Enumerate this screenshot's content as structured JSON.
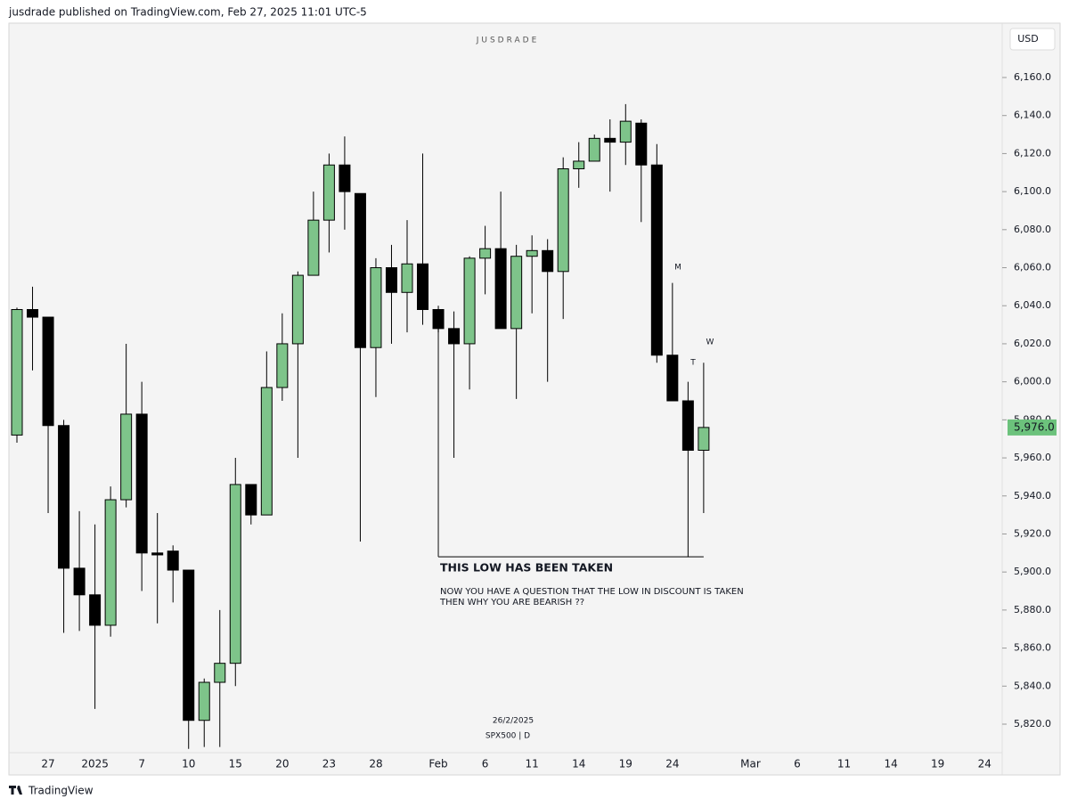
{
  "header": "jusdrade published on TradingView.com, Feb 27, 2025 11:01 UTC-5",
  "footer": "TradingView",
  "chart_data": {
    "type": "candlestick",
    "watermark": "JUSDRADE",
    "currency": "USD",
    "symbol": "SPX500 | D",
    "date": "26/2/2025",
    "up_color": "#7ec48a",
    "down_color": "#000000",
    "categories": [
      null,
      null,
      "27",
      null,
      null,
      "2025",
      null,
      null,
      "7",
      null,
      null,
      "10",
      null,
      null,
      "15",
      null,
      null,
      "20",
      null,
      null,
      "23",
      null,
      null,
      "28",
      null,
      null,
      null,
      "Feb",
      null,
      null,
      "6",
      null,
      null,
      "11",
      null,
      null,
      "14",
      null,
      null,
      "19",
      null,
      null,
      "24",
      null,
      null,
      null,
      null,
      "Mar",
      null,
      null,
      "6",
      null,
      null,
      "11",
      null,
      null,
      "14",
      null,
      null,
      "19",
      null,
      null,
      "24"
    ],
    "open": [
      5972,
      6038,
      6034,
      5977,
      5902,
      5888,
      5872,
      5938,
      5983,
      5910,
      5911,
      5901,
      5822,
      5842,
      5852,
      5946,
      5930,
      5997,
      6020,
      6056,
      6085,
      6114,
      6099,
      6018,
      6060,
      6047,
      6062,
      6038,
      6028,
      6020,
      6065,
      6070,
      6028,
      6066,
      6069,
      6058,
      6112,
      6116,
      6128,
      6126,
      6136,
      6114,
      6014,
      5990,
      5964,
      null,
      null,
      null,
      null,
      null,
      null,
      null,
      null,
      null,
      null,
      null,
      null,
      null,
      null,
      null,
      null,
      null,
      null
    ],
    "high": [
      6039,
      6050,
      6034,
      5980,
      5932,
      5925,
      5945,
      6020,
      6000,
      5931,
      5914,
      5901,
      5844,
      5880,
      5960,
      5946,
      6016,
      6036,
      6058,
      6100,
      6120,
      6129,
      6099,
      6065,
      6072,
      6085,
      6120,
      6040,
      6037,
      6066,
      6082,
      6100,
      6072,
      6077,
      6075,
      6118,
      6126,
      6130,
      6138,
      6146,
      6138,
      6125,
      6052,
      6000,
      6010,
      null,
      null,
      null,
      null,
      null,
      null,
      null,
      null,
      null,
      null,
      null,
      null,
      null,
      null,
      null,
      null,
      null,
      null
    ],
    "low": [
      5968,
      6006,
      5931,
      5868,
      5869,
      5828,
      5866,
      5934,
      5890,
      5873,
      5884,
      5807,
      5808,
      5808,
      5840,
      5925,
      5930,
      5990,
      5960,
      6056,
      6068,
      6080,
      5916,
      5992,
      6020,
      6026,
      6030,
      6026,
      5960,
      5996,
      6046,
      6028,
      5991,
      6036,
      6000,
      6033,
      6102,
      6116,
      6100,
      6114,
      6084,
      6010,
      5990,
      5908,
      5931,
      null,
      null,
      null,
      null,
      null,
      null,
      null,
      null,
      null,
      null,
      null,
      null,
      null,
      null,
      null,
      null,
      null,
      null
    ],
    "close": [
      6038,
      6034,
      5977,
      5902,
      5888,
      5872,
      5938,
      5983,
      5910,
      5909,
      5901,
      5822,
      5842,
      5852,
      5946,
      5930,
      5997,
      6020,
      6056,
      6085,
      6114,
      6100,
      6018,
      6060,
      6047,
      6062,
      6038,
      6028,
      6020,
      6065,
      6070,
      6028,
      6066,
      6069,
      6058,
      6112,
      6116,
      6128,
      6126,
      6137,
      6114,
      6014,
      5990,
      5964,
      5976,
      null,
      null,
      null,
      null,
      null,
      null,
      null,
      null,
      null,
      null,
      null,
      null,
      null,
      null,
      null,
      null,
      null,
      null
    ],
    "ylim": [
      5800,
      6170
    ],
    "yticks": [
      {
        "value": 5820,
        "label": "5,820.0"
      },
      {
        "value": 5840,
        "label": "5,840.0"
      },
      {
        "value": 5860,
        "label": "5,860.0"
      },
      {
        "value": 5880,
        "label": "5,880.0"
      },
      {
        "value": 5900,
        "label": "5,900.0"
      },
      {
        "value": 5920,
        "label": "5,920.0"
      },
      {
        "value": 5940,
        "label": "5,940.0"
      },
      {
        "value": 5960,
        "label": "5,960.0"
      },
      {
        "value": 5980,
        "label": "5,980.0"
      },
      {
        "value": 6000,
        "label": "6,000.0"
      },
      {
        "value": 6020,
        "label": "6,020.0"
      },
      {
        "value": 6040,
        "label": "6,040.0"
      },
      {
        "value": 6060,
        "label": "6,060.0"
      },
      {
        "value": 6080,
        "label": "6,080.0"
      },
      {
        "value": 6100,
        "label": "6,100.0"
      },
      {
        "value": 6120,
        "label": "6,120.0"
      },
      {
        "value": 6140,
        "label": "6,140.0"
      },
      {
        "value": 6160,
        "label": "6,160.0"
      }
    ],
    "last_price": {
      "value": 5976,
      "label": "5,976.0"
    },
    "last_price_color": "#6cc27c",
    "annotations": {
      "m": "M",
      "t": "T",
      "w": "W",
      "headline": "THIS LOW HAS BEEN TAKEN",
      "line1": "NOW YOU HAVE A QUESTION THAT THE LOW IN DISCOUNT IS TAKEN",
      "line2": "THEN WHY YOU ARE BEARISH ??"
    }
  }
}
